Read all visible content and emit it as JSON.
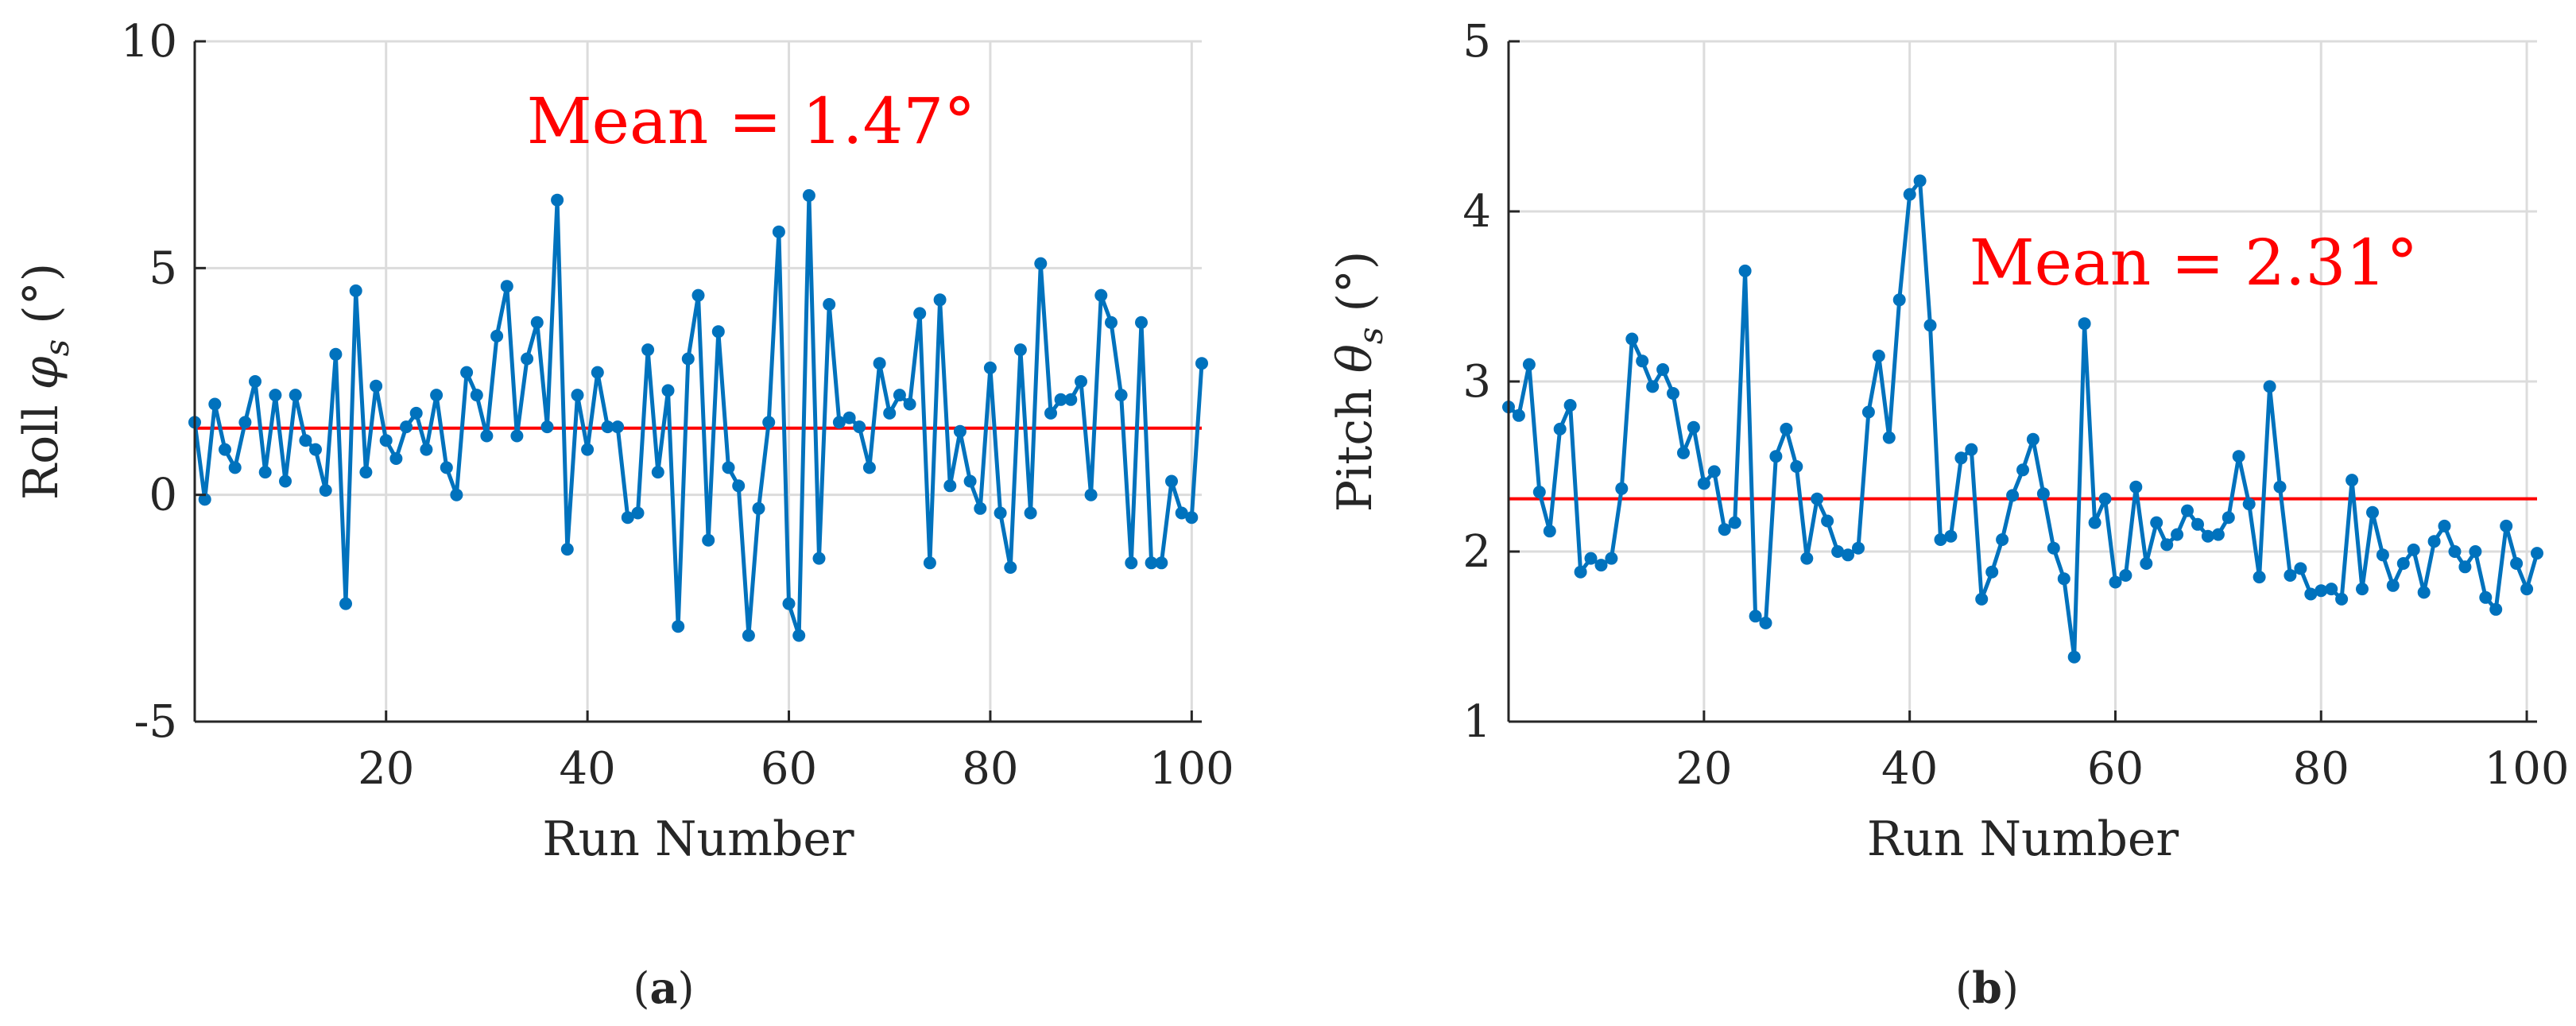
{
  "colors": {
    "series": "#0072bd",
    "mean": "#ff0000",
    "axis": "#262626",
    "grid": "#dcdcdc"
  },
  "chart_data": [
    {
      "type": "line",
      "panel": "(a)",
      "caption": {
        "open": "(",
        "letter": "a",
        "close": ")"
      },
      "xlabel": "Run Number",
      "ylabel": {
        "prefix": "Roll ",
        "symbol": "φ",
        "subscript": "s",
        "unit": " (°)"
      },
      "xlim": [
        1,
        101
      ],
      "ylim": [
        -5,
        10
      ],
      "xticks": [
        20,
        40,
        60,
        80,
        100
      ],
      "yticks": [
        -5,
        0,
        5,
        10
      ],
      "grid": true,
      "mean": 1.47,
      "mean_label": "Mean = 1.47°",
      "x_start": 1,
      "values": [
        1.6,
        -0.1,
        2.0,
        1.0,
        0.6,
        1.6,
        2.5,
        0.5,
        2.2,
        0.3,
        2.2,
        1.2,
        1.0,
        0.1,
        3.1,
        -2.4,
        4.5,
        0.5,
        2.4,
        1.2,
        0.8,
        1.5,
        1.8,
        1.0,
        2.2,
        0.6,
        0.0,
        2.7,
        2.2,
        1.3,
        3.5,
        4.6,
        1.3,
        3.0,
        3.8,
        1.5,
        6.5,
        -1.2,
        2.2,
        1.0,
        2.7,
        1.5,
        1.5,
        -0.5,
        -0.4,
        3.2,
        0.5,
        2.3,
        -2.9,
        3.0,
        4.4,
        -1.0,
        3.6,
        0.6,
        0.2,
        -3.1,
        -0.3,
        1.6,
        5.8,
        -2.4,
        -3.1,
        6.6,
        -1.4,
        4.2,
        1.6,
        1.7,
        1.5,
        0.6,
        2.9,
        1.8,
        2.2,
        2.0,
        4.0,
        -1.5,
        4.3,
        0.2,
        1.4,
        0.3,
        -0.3,
        2.8,
        -0.4,
        -1.6,
        3.2,
        -0.4,
        5.1,
        1.8,
        2.1,
        2.1,
        2.5,
        0.0,
        4.4,
        3.8,
        2.2,
        -1.5,
        3.8,
        -1.5,
        -1.5,
        0.3,
        -0.4,
        -0.5,
        2.9
      ]
    },
    {
      "type": "line",
      "panel": "(b)",
      "caption": {
        "open": "(",
        "letter": "b",
        "close": ")"
      },
      "xlabel": "Run Number",
      "ylabel": {
        "prefix": "Pitch ",
        "symbol": "θ",
        "subscript": "s",
        "unit": " (°)"
      },
      "xlim": [
        1,
        101
      ],
      "ylim": [
        1,
        5
      ],
      "xticks": [
        20,
        40,
        60,
        80,
        100
      ],
      "yticks": [
        1,
        2,
        3,
        4,
        5
      ],
      "grid": true,
      "mean": 2.31,
      "mean_label": "Mean = 2.31°",
      "x_start": 1,
      "values": [
        2.85,
        2.8,
        3.1,
        2.35,
        2.12,
        2.72,
        2.86,
        1.88,
        1.96,
        1.92,
        1.96,
        2.37,
        3.25,
        3.12,
        2.97,
        3.07,
        2.93,
        2.58,
        2.73,
        2.4,
        2.47,
        2.13,
        2.17,
        3.65,
        1.62,
        1.58,
        2.56,
        2.72,
        2.5,
        1.96,
        2.31,
        2.18,
        2.0,
        1.98,
        2.02,
        2.82,
        3.15,
        2.67,
        3.48,
        4.1,
        4.18,
        3.33,
        2.07,
        2.09,
        2.55,
        2.6,
        1.72,
        1.88,
        2.07,
        2.33,
        2.48,
        2.66,
        2.34,
        2.02,
        1.84,
        1.38,
        3.34,
        2.17,
        2.31,
        1.82,
        1.86,
        2.38,
        1.93,
        2.17,
        2.04,
        2.1,
        2.24,
        2.16,
        2.09,
        2.1,
        2.2,
        2.56,
        2.28,
        1.85,
        2.97,
        2.38,
        1.86,
        1.9,
        1.75,
        1.77,
        1.78,
        1.72,
        2.42,
        1.78,
        2.23,
        1.98,
        1.8,
        1.93,
        2.01,
        1.76,
        2.06,
        2.15,
        2.0,
        1.91,
        2.0,
        1.73,
        1.66,
        2.15,
        1.93,
        1.78,
        1.99
      ]
    }
  ]
}
